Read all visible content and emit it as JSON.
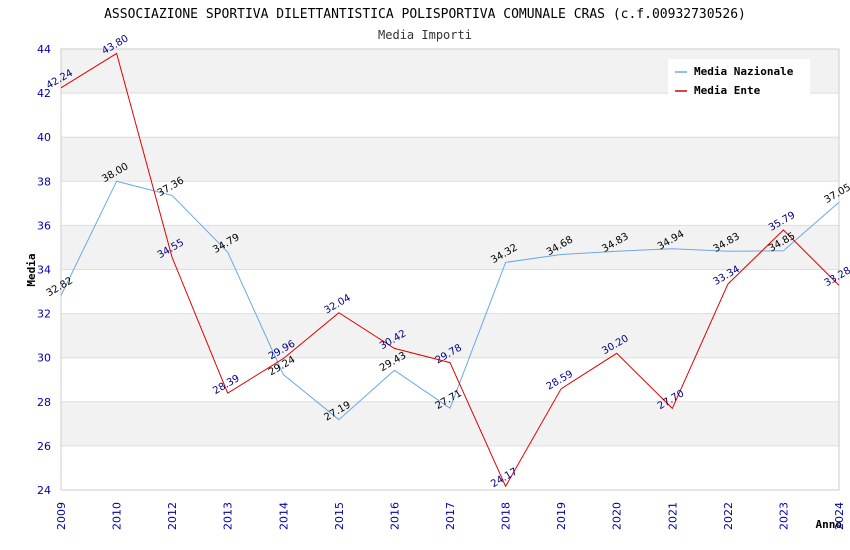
{
  "chart_data": {
    "type": "line",
    "title": "ASSOCIAZIONE SPORTIVA DILETTANTISTICA POLISPORTIVA COMUNALE CRAS (c.f.00932730526)",
    "subtitle": "Media Importi",
    "xlabel": "Anno",
    "ylabel": "Media",
    "ylim": [
      24,
      44
    ],
    "yticks": [
      "24",
      "26",
      "28",
      "30",
      "32",
      "34",
      "36",
      "38",
      "40",
      "42",
      "44"
    ],
    "categories": [
      "2009",
      "2010",
      "2012",
      "2013",
      "2014",
      "2015",
      "2016",
      "2017",
      "2018",
      "2019",
      "2020",
      "2021",
      "2022",
      "2023",
      "2024"
    ],
    "legend_position": "top-right",
    "series": [
      {
        "name": "Media Nazionale",
        "color": "#6aa8e8",
        "values": [
          32.82,
          38.0,
          37.36,
          34.79,
          29.24,
          27.19,
          29.43,
          27.71,
          34.32,
          34.68,
          34.83,
          34.94,
          34.83,
          34.85,
          37.05
        ],
        "labels": [
          "32.82",
          "38.00",
          "37.36",
          "34.79",
          "29.24",
          "27.19",
          "29.43",
          "27.71",
          "34.32",
          "34.68",
          "34.83",
          "34.94",
          "34.83",
          "34.85",
          "37.05"
        ]
      },
      {
        "name": "Media Ente",
        "color": "#e00000",
        "values": [
          42.24,
          43.8,
          34.55,
          28.39,
          29.96,
          32.04,
          30.42,
          29.78,
          24.17,
          28.59,
          30.2,
          27.7,
          33.34,
          35.79,
          33.28
        ],
        "labels": [
          "42.24",
          "43.80",
          "34.55",
          "28.39",
          "29.96",
          "32.04",
          "30.42",
          "29.78",
          "24.17",
          "28.59",
          "30.20",
          "27.70",
          "33.34",
          "35.79",
          "33.28"
        ]
      }
    ]
  }
}
